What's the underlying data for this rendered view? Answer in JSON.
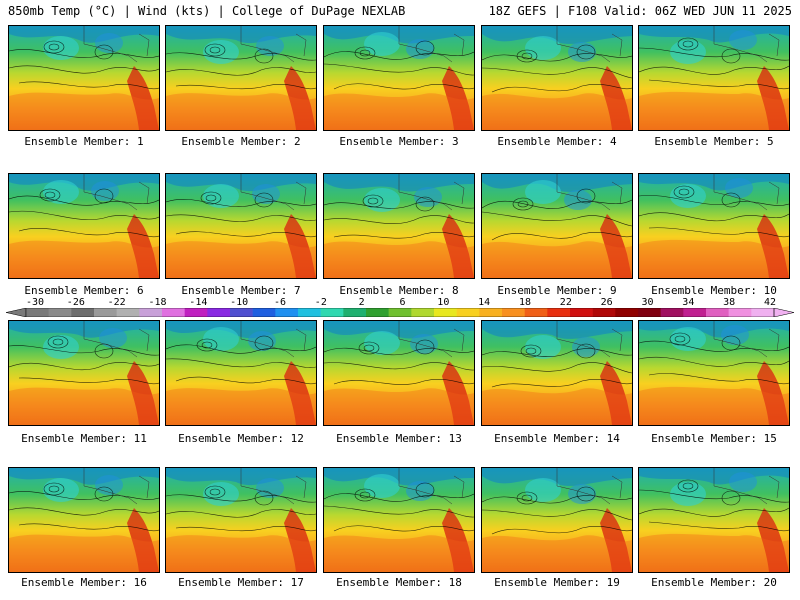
{
  "header": {
    "left_title": "850mb Temp (°C) | Wind (kts) | College of DuPage NEXLAB",
    "right_title": "18Z GEFS | F108 Valid: 06Z WED JUN 11 2025"
  },
  "panels": [
    {
      "label": "Ensemble Member: 1"
    },
    {
      "label": "Ensemble Member: 2"
    },
    {
      "label": "Ensemble Member: 3"
    },
    {
      "label": "Ensemble Member: 4"
    },
    {
      "label": "Ensemble Member: 5"
    },
    {
      "label": "Ensemble Member: 6"
    },
    {
      "label": "Ensemble Member: 7"
    },
    {
      "label": "Ensemble Member: 8"
    },
    {
      "label": "Ensemble Member: 9"
    },
    {
      "label": "Ensemble Member: 10"
    },
    {
      "label": "Ensemble Member: 11"
    },
    {
      "label": "Ensemble Member: 12"
    },
    {
      "label": "Ensemble Member: 13"
    },
    {
      "label": "Ensemble Member: 14"
    },
    {
      "label": "Ensemble Member: 15"
    },
    {
      "label": "Ensemble Member: 16"
    },
    {
      "label": "Ensemble Member: 17"
    },
    {
      "label": "Ensemble Member: 18"
    },
    {
      "label": "Ensemble Member: 19"
    },
    {
      "label": "Ensemble Member: 20"
    }
  ],
  "colorbar": {
    "tick_labels": [
      "-30",
      "-26",
      "-22",
      "-18",
      "-14",
      "-10",
      "-6",
      "-2",
      "2",
      "6",
      "10",
      "14",
      "18",
      "22",
      "26",
      "30",
      "34",
      "38",
      "42"
    ],
    "colors": [
      "#7a7a7a",
      "#8a8a8a",
      "#6e6e6e",
      "#9a9a9a",
      "#b0b0b0",
      "#c8a0d8",
      "#e070e0",
      "#c020c0",
      "#8a2be2",
      "#5050d0",
      "#2060e0",
      "#2090f0",
      "#20c0e0",
      "#30d8b0",
      "#20b070",
      "#30a030",
      "#70c030",
      "#b0d830",
      "#e8e820",
      "#f8d020",
      "#f8b020",
      "#f89020",
      "#f06018",
      "#e83010",
      "#d01010",
      "#b00808",
      "#900000",
      "#800010",
      "#a01060",
      "#c02090",
      "#e060c0",
      "#f090e0",
      "#f0b0f0"
    ]
  }
}
